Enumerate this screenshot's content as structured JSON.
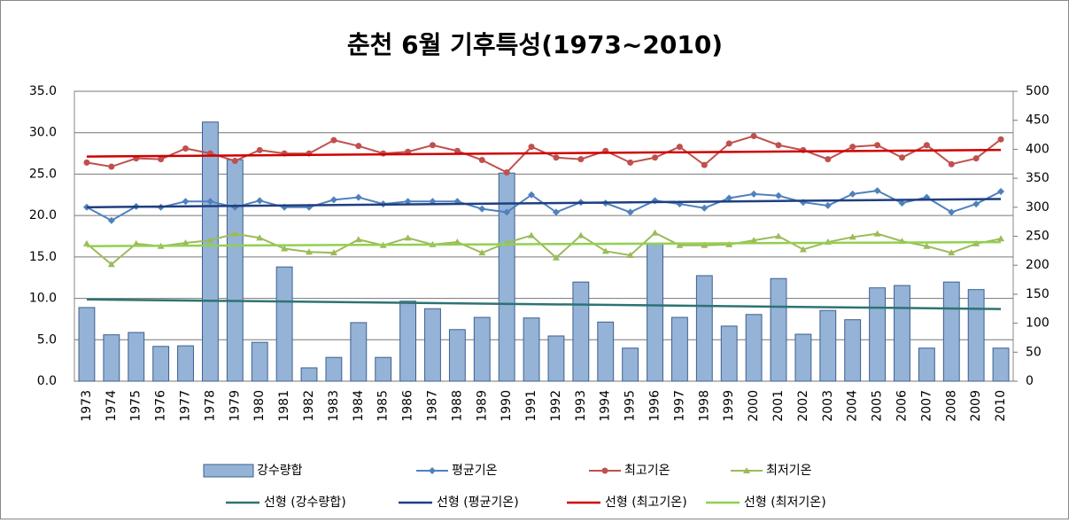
{
  "chart_data": {
    "type": "bar-line",
    "title": "춘천 6월 기후특성(1973~2010)",
    "categories": [
      "1973",
      "1974",
      "1975",
      "1976",
      "1977",
      "1978",
      "1979",
      "1980",
      "1981",
      "1982",
      "1983",
      "1984",
      "1985",
      "1986",
      "1987",
      "1988",
      "1989",
      "1990",
      "1991",
      "1992",
      "1993",
      "1994",
      "1995",
      "1996",
      "1997",
      "1998",
      "1999",
      "2000",
      "2001",
      "2002",
      "2003",
      "2004",
      "2005",
      "2006",
      "2007",
      "2008",
      "2009",
      "2010"
    ],
    "series": [
      {
        "name": "강수량합",
        "type": "bar",
        "axis": "y2",
        "color": "#95b3d7",
        "values": [
          127,
          80,
          84,
          60,
          61,
          447,
          382,
          67,
          197,
          23,
          41,
          101,
          41,
          138,
          125,
          89,
          110,
          359,
          109,
          78,
          171,
          102,
          57,
          237,
          110,
          182,
          95,
          115,
          177,
          81,
          122,
          106,
          161,
          165,
          57,
          171,
          158,
          57
        ]
      },
      {
        "name": "평균기온",
        "type": "line",
        "marker": "diamond",
        "color": "#4f81bd",
        "values": [
          21.0,
          19.4,
          21.1,
          21.0,
          21.7,
          21.7,
          21.0,
          21.8,
          21.0,
          21.0,
          21.9,
          22.2,
          21.4,
          21.7,
          21.7,
          21.7,
          20.8,
          20.4,
          22.5,
          20.4,
          21.6,
          21.5,
          20.4,
          21.8,
          21.4,
          20.9,
          22.1,
          22.6,
          22.4,
          21.6,
          21.2,
          22.6,
          23.0,
          21.5,
          22.2,
          20.4,
          21.4,
          22.9
        ]
      },
      {
        "name": "최고기온",
        "type": "line",
        "marker": "circle",
        "color": "#c0504d",
        "values": [
          26.4,
          25.9,
          26.9,
          26.8,
          28.1,
          27.5,
          26.6,
          27.9,
          27.5,
          27.5,
          29.1,
          28.4,
          27.5,
          27.7,
          28.5,
          27.8,
          26.7,
          25.2,
          28.3,
          27.0,
          26.8,
          27.8,
          26.4,
          27.0,
          28.3,
          26.1,
          28.7,
          29.6,
          28.5,
          27.9,
          26.8,
          28.3,
          28.5,
          27.0,
          28.5,
          26.2,
          26.9,
          29.2
        ]
      },
      {
        "name": "최저기온",
        "type": "line",
        "marker": "triangle",
        "color": "#9bbb59",
        "values": [
          16.6,
          14.1,
          16.6,
          16.3,
          16.7,
          17.0,
          17.8,
          17.3,
          16.0,
          15.6,
          15.5,
          17.1,
          16.4,
          17.3,
          16.5,
          16.8,
          15.5,
          16.7,
          17.6,
          14.9,
          17.6,
          15.7,
          15.2,
          17.9,
          16.4,
          16.4,
          16.5,
          17.0,
          17.5,
          15.9,
          16.8,
          17.4,
          17.8,
          16.9,
          16.3,
          15.5,
          16.6,
          17.2
        ]
      }
    ],
    "trendlines": [
      {
        "name": "선형 (강수량합)",
        "color": "#2e7373"
      },
      {
        "name": "선형 (평균기온)",
        "color": "#1f3f7f"
      },
      {
        "name": "선형 (최고기온)",
        "color": "#d00000"
      },
      {
        "name": "선형 (최저기온)",
        "color": "#92d050"
      }
    ],
    "ylim": [
      0,
      35
    ],
    "yticks": [
      {
        "value": 0,
        "label": "0.0"
      },
      {
        "value": 5,
        "label": "5.0"
      },
      {
        "value": 10,
        "label": "10.0"
      },
      {
        "value": 15,
        "label": "15.0"
      },
      {
        "value": 20,
        "label": "20.0"
      },
      {
        "value": 25,
        "label": "25.0"
      },
      {
        "value": 30,
        "label": "30.0"
      },
      {
        "value": 35,
        "label": "35.0"
      }
    ],
    "y2lim": [
      0,
      500
    ],
    "y2ticks": [
      0,
      50,
      100,
      150,
      200,
      250,
      300,
      350,
      400,
      450,
      500
    ],
    "grid": true,
    "legend": "bottom"
  }
}
